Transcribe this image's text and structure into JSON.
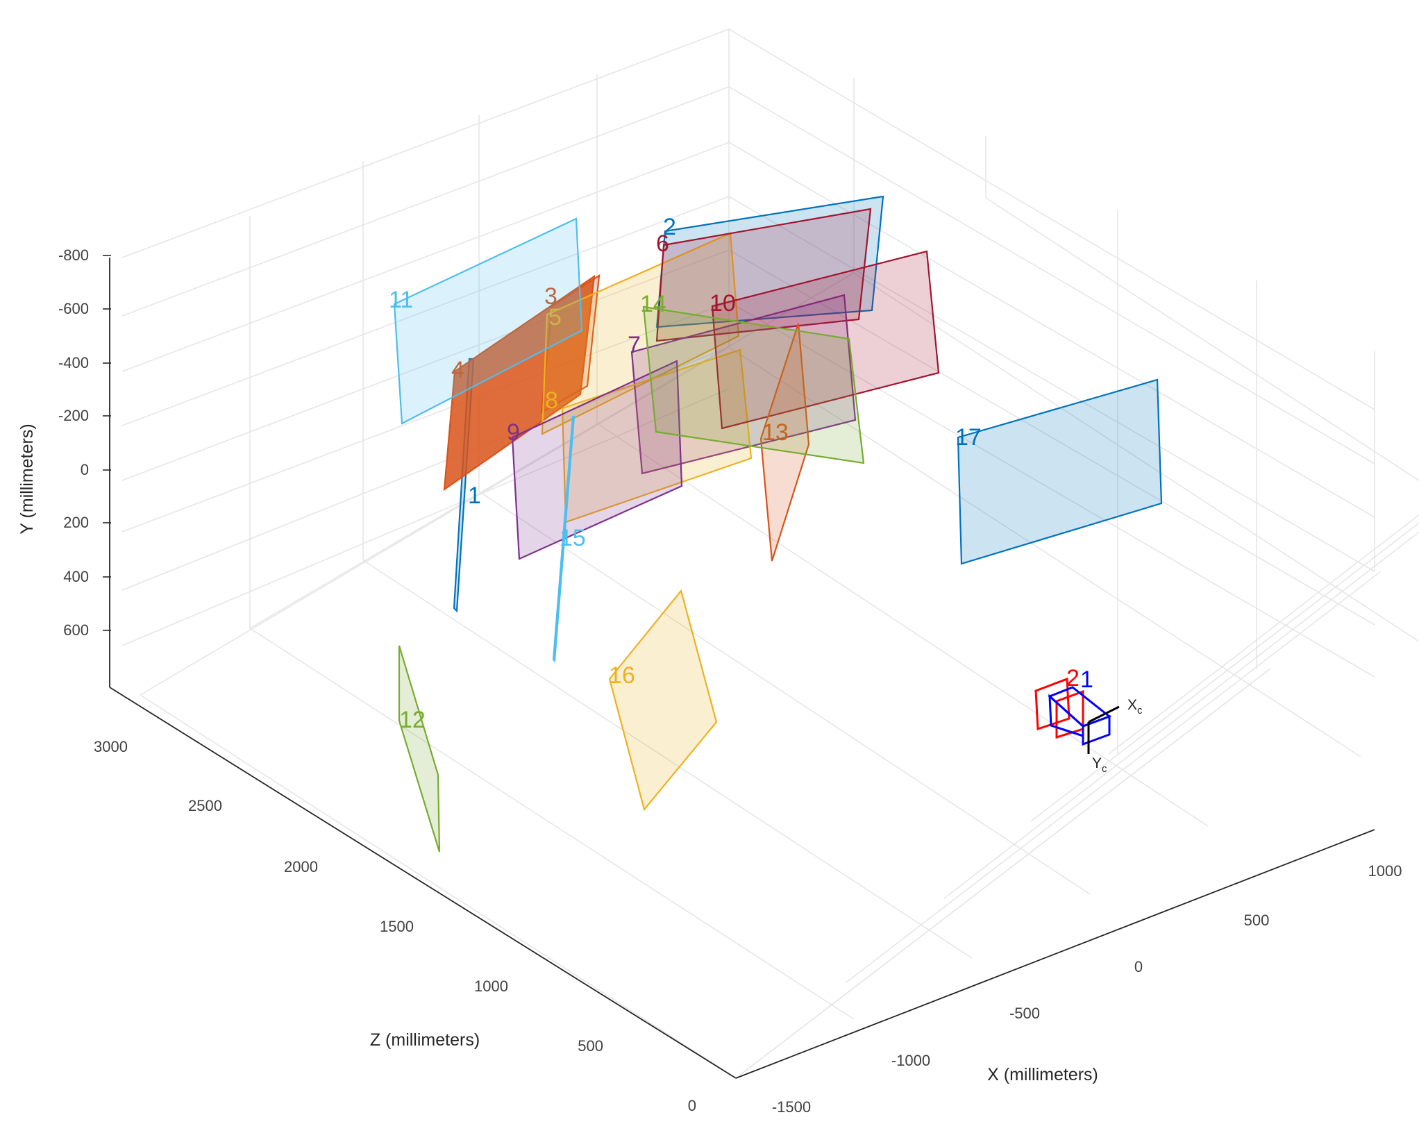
{
  "chart_data": {
    "type": "3d-extrinsics",
    "xlabel": "X (millimeters)",
    "ylabel": "Y (millimeters)",
    "zlabel": "Z (millimeters)",
    "grid": true,
    "x_ticks": [
      "-1500",
      "-1000",
      "-500",
      "0",
      "500",
      "1000"
    ],
    "y_ticks": [
      "-800",
      "-600",
      "-400",
      "-200",
      "0",
      "200",
      "400",
      "600"
    ],
    "z_ticks": [
      "0",
      "500",
      "1000",
      "1500",
      "2000",
      "2500",
      "3000"
    ],
    "boards": [
      {
        "label": "1",
        "color": "#0072BD"
      },
      {
        "label": "2",
        "color": "#0072BD"
      },
      {
        "label": "3",
        "color": "#D95319"
      },
      {
        "label": "4",
        "color": "#D95319"
      },
      {
        "label": "5",
        "color": "#EDB120"
      },
      {
        "label": "6",
        "color": "#A2142F"
      },
      {
        "label": "7",
        "color": "#7E2F8E"
      },
      {
        "label": "8",
        "color": "#EDB120"
      },
      {
        "label": "9",
        "color": "#7E2F8E"
      },
      {
        "label": "10",
        "color": "#A2142F"
      },
      {
        "label": "11",
        "color": "#4DBEEE"
      },
      {
        "label": "12",
        "color": "#77AC30"
      },
      {
        "label": "13",
        "color": "#D95319"
      },
      {
        "label": "14",
        "color": "#77AC30"
      },
      {
        "label": "15",
        "color": "#4DBEEE"
      },
      {
        "label": "16",
        "color": "#EDB120"
      },
      {
        "label": "17",
        "color": "#0072BD"
      }
    ],
    "camera": {
      "x_label": "X",
      "x_sub": "c",
      "y_label": "Y",
      "y_sub": "c",
      "marker_labels": [
        {
          "label": "1",
          "color": "#0000FF"
        },
        {
          "label": "2",
          "color": "#FF0000"
        }
      ]
    }
  }
}
